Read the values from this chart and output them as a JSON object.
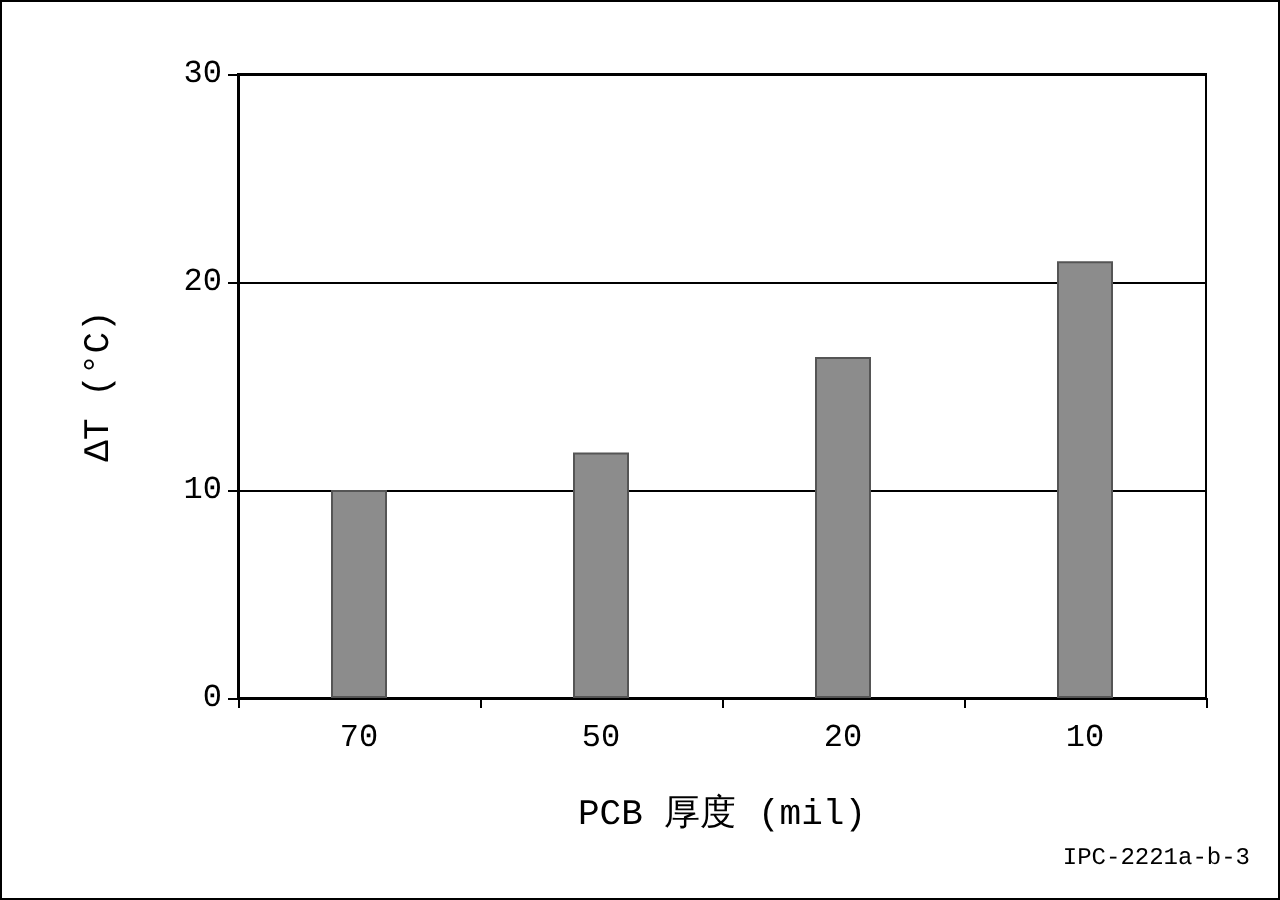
{
  "chart_data": {
    "type": "bar",
    "categories": [
      "70",
      "50",
      "20",
      "10"
    ],
    "values": [
      10,
      11.8,
      16.4,
      21
    ],
    "color": "#8c8c8c",
    "xlabel": "PCB 厚度 (mil)",
    "ylabel": "ΔT (°C)",
    "ylim": [
      0,
      30
    ],
    "yticks": [
      0,
      10,
      20,
      30
    ],
    "grid": "y",
    "annotations": [
      "IPC-2221a-b-3"
    ]
  }
}
